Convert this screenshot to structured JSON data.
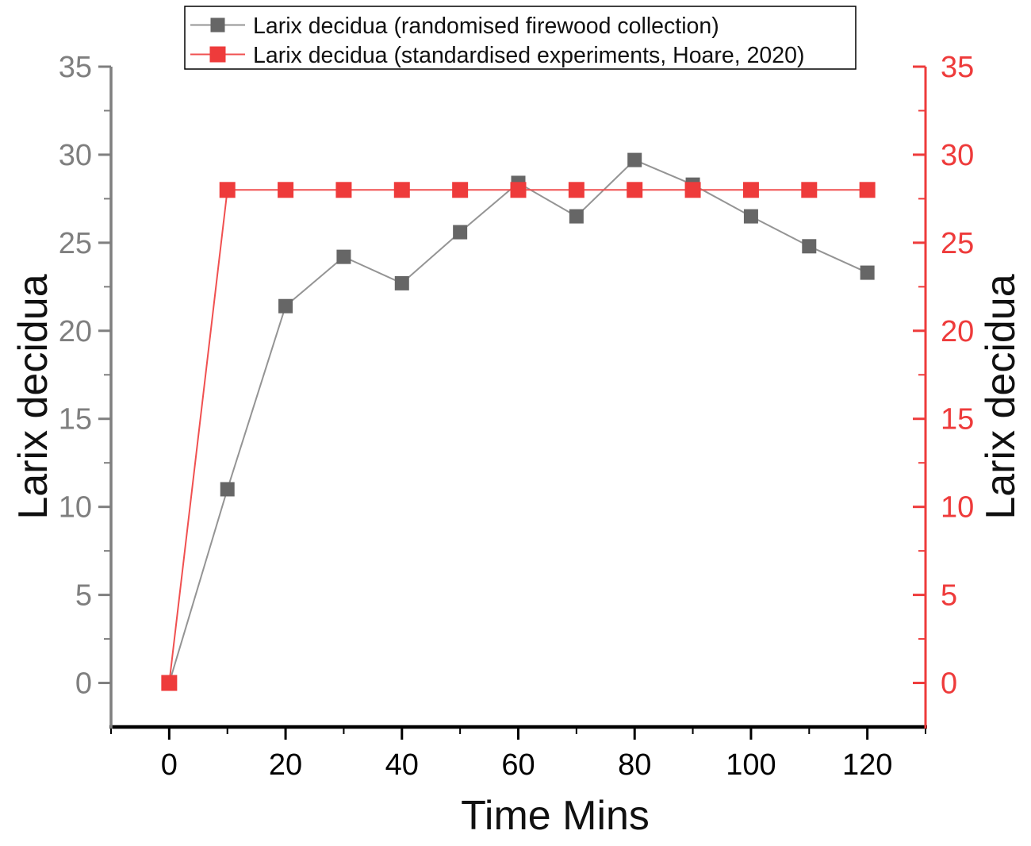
{
  "chart_data": {
    "type": "line",
    "title": "",
    "xlabel": "Time Mins",
    "ylabel_left": "Larix decidua",
    "ylabel_right": "Larix decidua",
    "x": [
      0,
      10,
      20,
      30,
      40,
      50,
      60,
      70,
      80,
      90,
      100,
      110,
      120
    ],
    "series": [
      {
        "name": "Larix decidua (randomised firewood collection)",
        "values": [
          0,
          11,
          21.4,
          24.2,
          22.7,
          25.6,
          28.4,
          26.5,
          29.7,
          28.3,
          26.5,
          24.8,
          23.3
        ],
        "marker": "square",
        "marker_color": "#666666",
        "line_color": "#949494"
      },
      {
        "name": "Larix decidua (standardised experiments, Hoare, 2020)",
        "values": [
          0,
          28,
          28,
          28,
          28,
          28,
          28,
          28,
          28,
          28,
          28,
          28,
          28
        ],
        "marker": "square",
        "marker_color": "#EE3B3B",
        "line_color": "#F05050"
      }
    ],
    "xlim": [
      -10,
      130
    ],
    "ylim": [
      -2.5,
      35
    ],
    "x_major_ticks": [
      0,
      20,
      40,
      60,
      80,
      100,
      120
    ],
    "x_minor_step": 10,
    "y_major_ticks": [
      0,
      5,
      10,
      15,
      20,
      25,
      30,
      35
    ],
    "y_minor_step": 2.5,
    "grid": false,
    "legend_position": "top-center",
    "axis_colors": {
      "bottom": "#000000",
      "left": "#7F7F7F",
      "right": "#EE3B3B"
    },
    "tick_label_colors": {
      "bottom": "#000000",
      "left": "#7F7F7F",
      "right": "#EE3B3B"
    },
    "legend_border_color": "#000000",
    "legend_text_color": "#111111",
    "background_color": "#FFFFFF"
  }
}
